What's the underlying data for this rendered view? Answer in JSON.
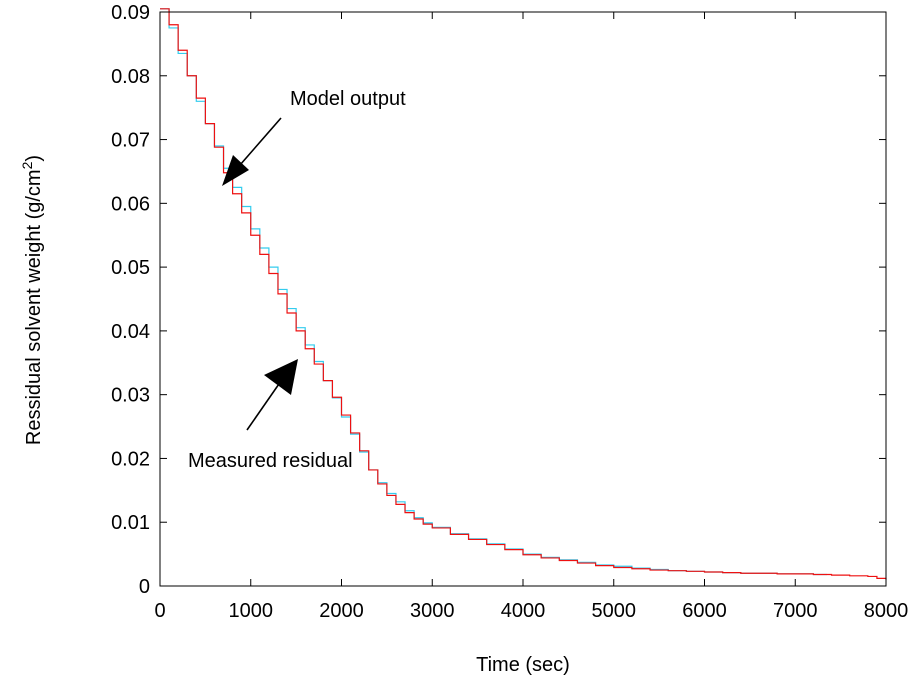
{
  "chart_data": {
    "type": "line",
    "xlabel": "Time (sec)",
    "ylabel_main": "Ressidual solvent weight (g/cm",
    "ylabel_sup": "2",
    "ylabel_close": ")",
    "xlim": [
      0,
      8000
    ],
    "ylim": [
      0,
      0.09
    ],
    "xticks": [
      0,
      1000,
      2000,
      3000,
      4000,
      5000,
      6000,
      7000,
      8000
    ],
    "yticks": [
      0,
      0.01,
      0.02,
      0.03,
      0.04,
      0.05,
      0.06,
      0.07,
      0.08,
      0.09
    ],
    "xtick_labels": [
      "0",
      "1000",
      "2000",
      "3000",
      "4000",
      "5000",
      "6000",
      "7000",
      "8000"
    ],
    "ytick_labels": [
      "0",
      "0.01",
      "0.02",
      "0.03",
      "0.04",
      "0.05",
      "0.06",
      "0.07",
      "0.08",
      "0.09"
    ],
    "grid": false,
    "series": [
      {
        "color": "#33ccee",
        "x": [
          0,
          100,
          200,
          300,
          400,
          500,
          600,
          700,
          800,
          900,
          1000,
          1100,
          1200,
          1300,
          1400,
          1500,
          1600,
          1700,
          1800,
          1900,
          2000,
          2100,
          2200,
          2300,
          2400,
          2500,
          2600,
          2700,
          2800,
          2900,
          3000,
          3200,
          3400,
          3600,
          3800,
          4000,
          4200,
          4400,
          4600,
          4800,
          5000,
          5200,
          5400,
          5600,
          5800,
          6000,
          6200,
          6400,
          6600,
          6800,
          7000,
          7200,
          7350
        ],
        "y": [
          0.0905,
          0.0875,
          0.0835,
          0.08,
          0.076,
          0.0725,
          0.069,
          0.0655,
          0.0625,
          0.0595,
          0.056,
          0.053,
          0.05,
          0.0465,
          0.0435,
          0.0405,
          0.0378,
          0.0352,
          0.0322,
          0.0295,
          0.0265,
          0.0238,
          0.021,
          0.0182,
          0.0162,
          0.0145,
          0.0132,
          0.0118,
          0.0107,
          0.0099,
          0.0092,
          0.0082,
          0.0074,
          0.0066,
          0.0058,
          0.005,
          0.0045,
          0.0041,
          0.0037,
          0.0033,
          0.0031,
          0.0028,
          0.0026,
          0.0024,
          0.0023,
          0.0022,
          0.0021,
          0.002,
          0.002,
          0.0019,
          0.0019,
          0.0018,
          0.0018
        ]
      },
      {
        "color": "#ee1111",
        "x": [
          0,
          100,
          200,
          300,
          400,
          500,
          600,
          700,
          800,
          900,
          1000,
          1100,
          1200,
          1300,
          1400,
          1500,
          1600,
          1700,
          1800,
          1900,
          2000,
          2100,
          2200,
          2300,
          2400,
          2500,
          2600,
          2700,
          2800,
          2900,
          3000,
          3200,
          3400,
          3600,
          3800,
          4000,
          4200,
          4400,
          4600,
          4800,
          5000,
          5200,
          5400,
          5600,
          5800,
          6000,
          6200,
          6400,
          6600,
          6800,
          7000,
          7200,
          7400,
          7600,
          7800,
          7900,
          8000
        ],
        "y": [
          0.0905,
          0.088,
          0.084,
          0.08,
          0.0765,
          0.0725,
          0.0688,
          0.0648,
          0.0615,
          0.0585,
          0.055,
          0.052,
          0.049,
          0.0458,
          0.0428,
          0.04,
          0.0372,
          0.0348,
          0.0322,
          0.0296,
          0.0268,
          0.024,
          0.0212,
          0.0182,
          0.016,
          0.0142,
          0.0128,
          0.0115,
          0.0105,
          0.0097,
          0.0091,
          0.0081,
          0.0073,
          0.0065,
          0.0057,
          0.0049,
          0.0044,
          0.004,
          0.0036,
          0.0032,
          0.0029,
          0.0027,
          0.0025,
          0.0024,
          0.0023,
          0.0022,
          0.0021,
          0.002,
          0.002,
          0.0019,
          0.0019,
          0.0018,
          0.0017,
          0.0016,
          0.0015,
          0.0012,
          0.001
        ]
      }
    ],
    "annotations": [
      {
        "text": "Model output",
        "target": [
          700,
          0.0625
        ]
      },
      {
        "text": "Measured residual",
        "target": [
          1580,
          0.038
        ]
      }
    ]
  }
}
